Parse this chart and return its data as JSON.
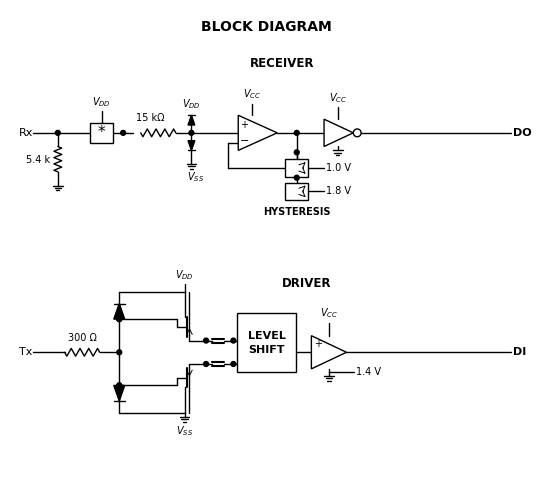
{
  "title": "BLOCK DIAGRAM",
  "bg_color": "#ffffff",
  "line_color": "#000000",
  "title_fontsize": 10,
  "receiver_label": "RECEIVER",
  "driver_label": "DRIVER",
  "hysteresis_label": "HYSTERESIS",
  "do_label": "DO",
  "di_label": "DI",
  "rx_label": "Rx",
  "tx_label": "Tx",
  "r15k_label": "15 kΩ",
  "r54_label": "5.4 k",
  "r300_label": "300 Ω",
  "v10_label": "1.0 V",
  "v18_label": "1.8 V",
  "v14_label": "1.4 V"
}
